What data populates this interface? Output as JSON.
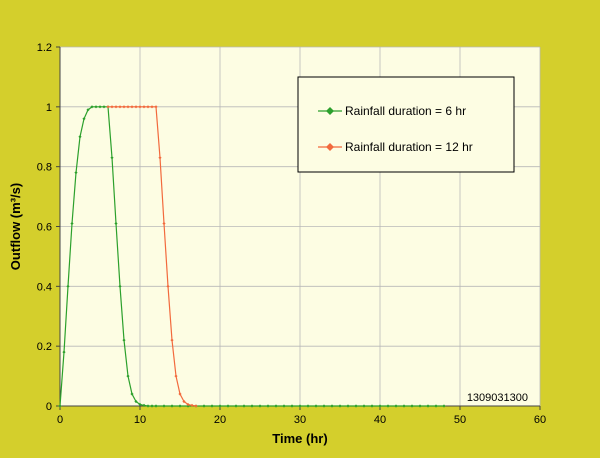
{
  "colors": {
    "background": "#d4cf2c",
    "plot_area": "#fdfde3",
    "gridline": "#b8b8b8",
    "series_6hr": "#2ca02c",
    "series_12hr": "#f26a3d"
  },
  "figure_id": "1309031300",
  "chart_data": {
    "type": "line",
    "title": "",
    "xlabel": "Time (hr)",
    "ylabel": "Outflow (m³/s)",
    "xlim": [
      0,
      60
    ],
    "ylim": [
      0,
      1.2
    ],
    "xticks": [
      0,
      10,
      20,
      30,
      40,
      50,
      60
    ],
    "yticks": [
      0,
      0.2,
      0.4,
      0.6,
      0.8,
      1,
      1.2
    ],
    "ytick_labels": [
      "0",
      "0.2",
      "0.4",
      "0.6",
      "0.8",
      "1",
      "1.2"
    ],
    "grid": true,
    "legend_position": "top-right",
    "series": [
      {
        "name": "Rainfall duration = 6 hr",
        "marker": "diamond",
        "x": [
          0,
          0.5,
          1,
          1.5,
          2,
          2.5,
          3,
          3.5,
          4,
          4.5,
          5,
          5.5,
          6,
          6.5,
          7,
          7.5,
          8,
          8.5,
          9,
          9.5,
          10,
          10.5,
          11,
          11.5,
          12,
          13,
          14,
          15,
          16,
          17,
          18,
          19,
          20,
          21,
          22,
          23,
          24,
          25,
          26,
          27,
          28,
          29,
          30,
          31,
          32,
          33,
          34,
          35,
          36,
          37,
          38,
          39,
          40,
          41,
          42,
          43,
          44,
          45,
          46,
          47,
          48
        ],
        "y": [
          0,
          0.18,
          0.4,
          0.61,
          0.78,
          0.9,
          0.96,
          0.99,
          1,
          1,
          1,
          1,
          1,
          0.83,
          0.61,
          0.4,
          0.22,
          0.1,
          0.04,
          0.015,
          0.005,
          0.002,
          0,
          0,
          0,
          0,
          0,
          0,
          0,
          0,
          0,
          0,
          0,
          0,
          0,
          0,
          0,
          0,
          0,
          0,
          0,
          0,
          0,
          0,
          0,
          0,
          0,
          0,
          0,
          0,
          0,
          0,
          0,
          0,
          0,
          0,
          0,
          0,
          0,
          0,
          0
        ]
      },
      {
        "name": "Rainfall duration = 12 hr",
        "marker": "diamond",
        "x": [
          6,
          6.5,
          7,
          7.5,
          8,
          8.5,
          9,
          9.5,
          10,
          10.5,
          11,
          11.5,
          12,
          12.5,
          13,
          13.5,
          14,
          14.5,
          15,
          15.5,
          16,
          16.5,
          17
        ],
        "y": [
          1,
          1,
          1,
          1,
          1,
          1,
          1,
          1,
          1,
          1,
          1,
          1,
          1,
          0.83,
          0.61,
          0.4,
          0.22,
          0.1,
          0.04,
          0.015,
          0.005,
          0.002,
          0
        ]
      }
    ]
  }
}
